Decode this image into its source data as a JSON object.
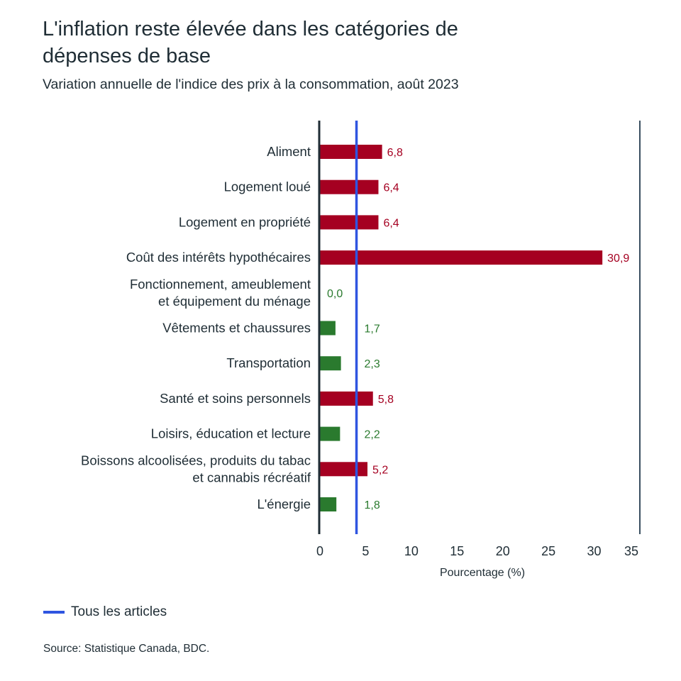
{
  "header": {
    "title": "L'inflation reste élevée dans les catégories de dépenses de base",
    "subtitle": "Variation annuelle de l'indice des prix à la consommation, août 2023"
  },
  "legend": {
    "label": "Tous les articles"
  },
  "footer": {
    "source": "Source: Statistique Canada, BDC."
  },
  "colors": {
    "above": "#a50021",
    "below": "#2a7a2e",
    "reference": "#2f55e0",
    "axis": "#1f2d35",
    "text": "#1f2d35"
  },
  "chart_data": {
    "type": "bar",
    "orientation": "horizontal",
    "title": "L'inflation reste élevée dans les catégories de dépenses de base",
    "subtitle": "Variation annuelle de l'indice des prix à la consommation, août 2023",
    "xlabel": "Pourcentage (%)",
    "ylabel": "",
    "xlim": [
      0,
      35
    ],
    "xticks": [
      0,
      5,
      10,
      15,
      20,
      25,
      30,
      35
    ],
    "xtick_labels": [
      "0",
      "5",
      "10",
      "15",
      "20",
      "25",
      "30",
      "35"
    ],
    "grid": false,
    "legend_position": "bottom-left",
    "reference_line": {
      "name": "Tous les articles",
      "value": 4.0
    },
    "categories": [
      [
        "Aliment"
      ],
      [
        "Logement loué"
      ],
      [
        "Logement en propriété"
      ],
      [
        "Coût des intérêts hypothécaires"
      ],
      [
        "Fonctionnement, ameublement",
        "et équipement du ménage"
      ],
      [
        "Vêtements et chaussures"
      ],
      [
        "Transportation"
      ],
      [
        "Santé et soins personnels"
      ],
      [
        "Loisirs, éducation et lecture"
      ],
      [
        "Boissons alcoolisées, produits du tabac",
        "et cannabis récréatif"
      ],
      [
        "L'énergie"
      ]
    ],
    "values": [
      6.8,
      6.4,
      6.4,
      30.9,
      0.0,
      1.7,
      2.3,
      5.8,
      2.2,
      5.2,
      1.8
    ],
    "value_labels": [
      "6,8",
      "6,4",
      "6,4",
      "30,9",
      "0,0",
      "1,7",
      "2,3",
      "5,8",
      "2,2",
      "5,2",
      "1,8"
    ],
    "status": [
      "above",
      "above",
      "above",
      "above",
      "below",
      "below",
      "below",
      "above",
      "below",
      "above",
      "below"
    ]
  }
}
